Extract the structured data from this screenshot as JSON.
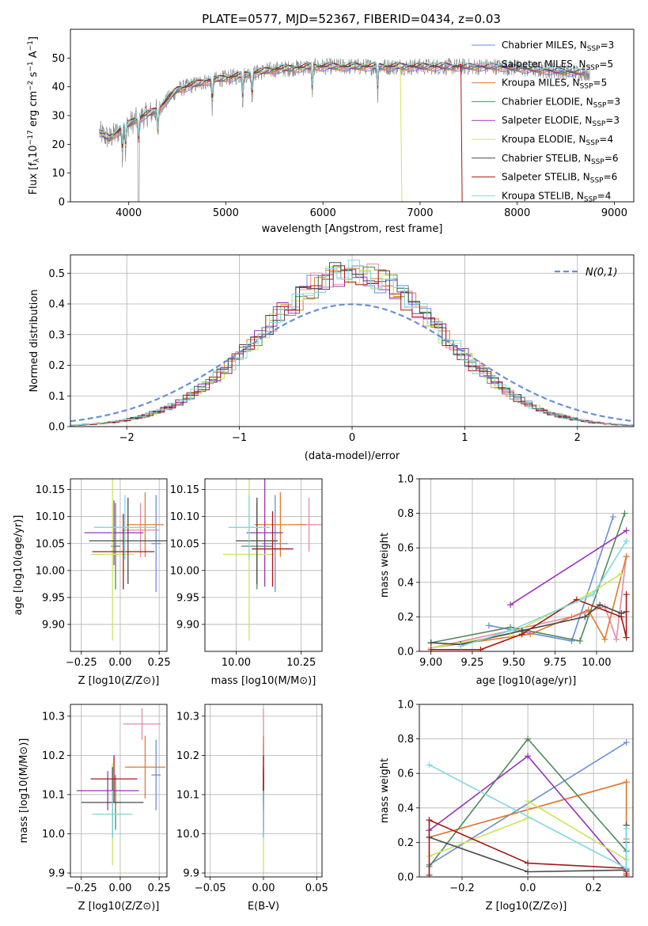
{
  "figure_title": "PLATE=0577, MJD=52367, FIBERID=0434, z=0.03",
  "colors": {
    "Chabrier MILES": "#6a8fd6",
    "Salpeter MILES": "#e48aa5",
    "Kroupa MILES": "#e07a2e",
    "Chabrier ELODIE": "#4f8a5a",
    "Salpeter ELODIE": "#9a32b8",
    "Kroupa ELODIE": "#c9e65c",
    "Chabrier STELIB": "#4a4a4a",
    "Salpeter STELIB": "#a81818",
    "Kroupa STELIB": "#7fd8e0"
  },
  "chart_data": [
    {
      "id": "spectrum",
      "type": "line",
      "title": "PLATE=0577, MJD=52367, FIBERID=0434, z=0.03",
      "xlabel": "wavelength [Angstrom, rest frame]",
      "ylabel": "Flux [f_λ 10^-17 erg cm^-2 s^-1 A^-1]",
      "xlim": [
        3400,
        9200
      ],
      "ylim": [
        0,
        60
      ],
      "xticks": [
        "4000",
        "5000",
        "6000",
        "7000",
        "8000",
        "9000"
      ],
      "yticks": [
        "0",
        "10",
        "20",
        "30",
        "40",
        "50"
      ],
      "legend_position": "top-right",
      "observed_spectrum_color": "#808080",
      "continuum_anchor_points": [
        [
          3700,
          24
        ],
        [
          3800,
          22
        ],
        [
          3950,
          26
        ],
        [
          4100,
          29
        ],
        [
          4300,
          32
        ],
        [
          4500,
          39
        ],
        [
          4800,
          42
        ],
        [
          5000,
          43
        ],
        [
          5500,
          46
        ],
        [
          5900,
          47
        ],
        [
          6300,
          47
        ],
        [
          6800,
          47
        ],
        [
          7200,
          47
        ],
        [
          7500,
          47
        ],
        [
          7800,
          47
        ],
        [
          8200,
          46
        ],
        [
          8600,
          45
        ],
        [
          8900,
          45
        ]
      ],
      "model_end_wavelengths": {
        "Salpeter STELIB": 7420,
        "Kroupa ELODIE": 6800
      },
      "series": [
        {
          "name": "Chabrier MILES",
          "nssp": "3"
        },
        {
          "name": "Salpeter MILES",
          "nssp": "5"
        },
        {
          "name": "Kroupa MILES",
          "nssp": "5"
        },
        {
          "name": "Chabrier ELODIE",
          "nssp": "3"
        },
        {
          "name": "Salpeter ELODIE",
          "nssp": "3"
        },
        {
          "name": "Kroupa ELODIE",
          "nssp": "4"
        },
        {
          "name": "Chabrier STELIB",
          "nssp": "6"
        },
        {
          "name": "Salpeter STELIB",
          "nssp": "6"
        },
        {
          "name": "Kroupa STELIB",
          "nssp": "4"
        }
      ]
    },
    {
      "id": "residuals",
      "type": "line",
      "xlabel": "(data-model)/error",
      "ylabel": "Normed distribution",
      "xlim": [
        -2.5,
        2.5
      ],
      "ylim": [
        0,
        0.56
      ],
      "xticks": [
        "−2",
        "−1",
        "0",
        "1",
        "2"
      ],
      "yticks": [
        "0.0",
        "0.1",
        "0.2",
        "0.3",
        "0.4",
        "0.5"
      ],
      "grid": true,
      "legend_position": "top-right",
      "legend_label": "N(0,1)",
      "reference_curve": {
        "name": "N(0,1)",
        "mean": 0,
        "sigma": 1,
        "style": "dashed"
      },
      "bin_width": 0.1,
      "histogram_envelope_peak": 0.5,
      "histogram_envelope_sigma": 0.8
    },
    {
      "id": "age_vs_Z",
      "type": "scatter",
      "xlabel": "Z [log10(Z/Z⊙)]",
      "ylabel": "age [log10(age/yr)]",
      "xlim": [
        -0.32,
        0.3
      ],
      "ylim": [
        9.85,
        10.17
      ],
      "xticks": [
        -0.25,
        0.0,
        0.25
      ],
      "yticks": [
        9.9,
        9.95,
        10.0,
        10.05,
        10.1,
        10.15
      ],
      "grid": true,
      "points": [
        {
          "series": "Chabrier MILES",
          "x": 0.23,
          "y": 10.05,
          "xerr": 0.03,
          "yerr": 0.09
        },
        {
          "series": "Salpeter MILES",
          "x": 0.13,
          "y": 10.075,
          "xerr": 0.12,
          "yerr": 0.05
        },
        {
          "series": "Kroupa MILES",
          "x": 0.16,
          "y": 10.085,
          "xerr": 0.12,
          "yerr": 0.06
        },
        {
          "series": "Chabrier ELODIE",
          "x": -0.03,
          "y": 10.045,
          "xerr": 0.03,
          "yerr": 0.08
        },
        {
          "series": "Salpeter ELODIE",
          "x": -0.04,
          "y": 10.07,
          "xerr": 0.19,
          "yerr": 0.06
        },
        {
          "series": "Kroupa ELODIE",
          "x": -0.05,
          "y": 10.03,
          "xerr": 0.14,
          "yerr": 0.16
        },
        {
          "series": "Chabrier STELIB",
          "x": 0.05,
          "y": 10.055,
          "xerr": 0.25,
          "yerr": 0.08
        },
        {
          "series": "Salpeter STELIB",
          "x": 0.02,
          "y": 10.035,
          "xerr": 0.2,
          "yerr": 0.07
        },
        {
          "series": "Kroupa STELIB",
          "x": 0.03,
          "y": 10.08,
          "xerr": 0.2,
          "yerr": 0.06
        }
      ]
    },
    {
      "id": "age_vs_mass",
      "type": "scatter",
      "xlabel": "mass [log10(M/M⊙)]",
      "ylabel": "",
      "xlim": [
        9.88,
        10.33
      ],
      "ylim": [
        9.85,
        10.17
      ],
      "xticks": [
        10.0,
        10.25
      ],
      "yticks": [
        9.9,
        9.95,
        10.0,
        10.05,
        10.1,
        10.15
      ],
      "grid": true,
      "points": [
        {
          "series": "Chabrier MILES",
          "x": 10.15,
          "y": 10.05,
          "xerr": 0.05,
          "yerr": 0.09
        },
        {
          "series": "Salpeter MILES",
          "x": 10.28,
          "y": 10.085,
          "xerr": 0.05,
          "yerr": 0.05
        },
        {
          "series": "Kroupa MILES",
          "x": 10.17,
          "y": 10.085,
          "xerr": 0.1,
          "yerr": 0.06
        },
        {
          "series": "Chabrier ELODIE",
          "x": 10.08,
          "y": 10.045,
          "xerr": 0.06,
          "yerr": 0.08
        },
        {
          "series": "Salpeter ELODIE",
          "x": 10.11,
          "y": 10.07,
          "xerr": 0.07,
          "yerr": 0.1
        },
        {
          "series": "Kroupa ELODIE",
          "x": 10.05,
          "y": 10.03,
          "xerr": 0.1,
          "yerr": 0.16
        },
        {
          "series": "Chabrier STELIB",
          "x": 10.08,
          "y": 10.055,
          "xerr": 0.08,
          "yerr": 0.08
        },
        {
          "series": "Salpeter STELIB",
          "x": 10.14,
          "y": 10.04,
          "xerr": 0.08,
          "yerr": 0.07
        },
        {
          "series": "Kroupa STELIB",
          "x": 10.05,
          "y": 10.08,
          "xerr": 0.08,
          "yerr": 0.06
        }
      ]
    },
    {
      "id": "weight_vs_age",
      "type": "line",
      "xlabel": "age [log10(age/yr)]",
      "ylabel": "mass weight",
      "xlim": [
        8.93,
        10.22
      ],
      "ylim": [
        0,
        1.0
      ],
      "xticks": [
        9.0,
        9.25,
        9.5,
        9.75,
        10.0
      ],
      "yticks": [
        0.0,
        0.2,
        0.4,
        0.6,
        0.8,
        1.0
      ],
      "grid": true,
      "series": [
        {
          "name": "Chabrier MILES",
          "x": [
            9.35,
            9.85,
            10.1
          ],
          "y": [
            0.15,
            0.06,
            0.78
          ]
        },
        {
          "name": "Salpeter MILES",
          "x": [
            9.0,
            9.48,
            9.85,
            10.05,
            10.12,
            10.18
          ],
          "y": [
            0.02,
            0.12,
            0.2,
            0.26,
            0.07,
            0.55
          ]
        },
        {
          "name": "Kroupa MILES",
          "x": [
            9.0,
            9.6,
            9.95,
            10.05,
            10.18
          ],
          "y": [
            0.02,
            0.1,
            0.24,
            0.07,
            0.55
          ]
        },
        {
          "name": "Chabrier ELODIE",
          "x": [
            9.0,
            9.48,
            9.9,
            10.17
          ],
          "y": [
            0.05,
            0.14,
            0.06,
            0.8
          ]
        },
        {
          "name": "Salpeter ELODIE",
          "x": [
            9.48,
            10.18
          ],
          "y": [
            0.27,
            0.7
          ]
        },
        {
          "name": "Kroupa ELODIE",
          "x": [
            9.0,
            9.48,
            9.95,
            10.15
          ],
          "y": [
            0.02,
            0.1,
            0.33,
            0.45
          ]
        },
        {
          "name": "Chabrier STELIB",
          "x": [
            9.0,
            9.18,
            9.55,
            9.93,
            10.02,
            10.15,
            10.18
          ],
          "y": [
            0.05,
            0.04,
            0.12,
            0.2,
            0.27,
            0.22,
            0.23
          ]
        },
        {
          "name": "Salpeter STELIB",
          "x": [
            9.0,
            9.3,
            9.55,
            9.88,
            10.15,
            10.18,
            10.18
          ],
          "y": [
            0.01,
            0.01,
            0.1,
            0.3,
            0.2,
            0.08,
            0.33
          ]
        },
        {
          "name": "Kroupa STELIB",
          "x": [
            9.18,
            9.48,
            9.98,
            10.18
          ],
          "y": [
            0.03,
            0.12,
            0.33,
            0.64
          ]
        }
      ]
    },
    {
      "id": "mass_vs_Z",
      "type": "scatter",
      "xlabel": "Z [log10(Z/Z⊙)]",
      "ylabel": "mass [log10(M/M⊙)]",
      "xlim": [
        -0.32,
        0.3
      ],
      "ylim": [
        9.89,
        10.33
      ],
      "xticks": [
        -0.25,
        0.0,
        0.25
      ],
      "yticks": [
        9.9,
        10.0,
        10.1,
        10.2,
        10.3
      ],
      "grid": true,
      "points": [
        {
          "series": "Chabrier MILES",
          "x": 0.23,
          "y": 10.15,
          "xerr": 0.03,
          "yerr": 0.09
        },
        {
          "series": "Salpeter MILES",
          "x": 0.14,
          "y": 10.28,
          "xerr": 0.12,
          "yerr": 0.04
        },
        {
          "series": "Kroupa MILES",
          "x": 0.16,
          "y": 10.17,
          "xerr": 0.13,
          "yerr": 0.08
        },
        {
          "series": "Chabrier ELODIE",
          "x": -0.03,
          "y": 10.08,
          "xerr": 0.04,
          "yerr": 0.07
        },
        {
          "series": "Salpeter ELODIE",
          "x": -0.08,
          "y": 10.11,
          "xerr": 0.2,
          "yerr": 0.05
        },
        {
          "series": "Kroupa ELODIE",
          "x": -0.05,
          "y": 10.05,
          "xerr": 0.1,
          "yerr": 0.13
        },
        {
          "series": "Chabrier STELIB",
          "x": -0.05,
          "y": 10.08,
          "xerr": 0.2,
          "yerr": 0.09
        },
        {
          "series": "Salpeter STELIB",
          "x": -0.04,
          "y": 10.14,
          "xerr": 0.15,
          "yerr": 0.06
        },
        {
          "series": "Kroupa STELIB",
          "x": -0.05,
          "y": 10.05,
          "xerr": 0.13,
          "yerr": 0.06
        }
      ]
    },
    {
      "id": "mass_vs_ebv",
      "type": "scatter",
      "xlabel": "E(B-V)",
      "ylabel": "",
      "xlim": [
        -0.055,
        0.055
      ],
      "ylim": [
        9.89,
        10.33
      ],
      "xticks": [
        -0.05,
        0.0,
        0.05
      ],
      "yticks": [
        9.9,
        10.0,
        10.1,
        10.2,
        10.3
      ],
      "grid": true,
      "points": [
        {
          "series": "Chabrier MILES",
          "x": 0.0,
          "y": 10.15,
          "xerr": 0.0,
          "yerr": 0.09
        },
        {
          "series": "Salpeter MILES",
          "x": 0.0,
          "y": 10.28,
          "xerr": 0.0,
          "yerr": 0.04
        },
        {
          "series": "Kroupa MILES",
          "x": 0.0,
          "y": 10.17,
          "xerr": 0.0,
          "yerr": 0.08
        },
        {
          "series": "Chabrier ELODIE",
          "x": 0.0,
          "y": 10.08,
          "xerr": 0.0,
          "yerr": 0.07
        },
        {
          "series": "Salpeter ELODIE",
          "x": 0.0,
          "y": 10.11,
          "xerr": 0.0,
          "yerr": 0.05
        },
        {
          "series": "Kroupa ELODIE",
          "x": 0.0,
          "y": 10.0,
          "xerr": 0.0,
          "yerr": 0.09
        },
        {
          "series": "Chabrier STELIB",
          "x": 0.0,
          "y": 10.08,
          "xerr": 0.0,
          "yerr": 0.09
        },
        {
          "series": "Salpeter STELIB",
          "x": 0.0,
          "y": 10.14,
          "xerr": 0.0,
          "yerr": 0.06
        },
        {
          "series": "Kroupa STELIB",
          "x": 0.0,
          "y": 10.05,
          "xerr": 0.0,
          "yerr": 0.06
        }
      ]
    },
    {
      "id": "weight_vs_Z",
      "type": "line",
      "xlabel": "Z [log10(Z/Z⊙)]",
      "ylabel": "mass weight",
      "xlim": [
        -0.33,
        0.32
      ],
      "ylim": [
        0,
        1.0
      ],
      "xticks": [
        -0.2,
        0.0,
        0.2
      ],
      "yticks": [
        0.0,
        0.2,
        0.4,
        0.6,
        0.8,
        1.0
      ],
      "grid": true,
      "series": [
        {
          "name": "Chabrier MILES",
          "x": [
            -0.3,
            0.3
          ],
          "y": [
            0.07,
            0.78
          ]
        },
        {
          "name": "Salpeter MILES",
          "x": [
            -0.3,
            0.3,
            0.3,
            0.3
          ],
          "y": [
            0.23,
            0.55,
            0.03,
            0.1
          ]
        },
        {
          "name": "Kroupa MILES",
          "x": [
            -0.3,
            0.3,
            0.3,
            0.3
          ],
          "y": [
            0.23,
            0.55,
            0.02,
            0.22
          ]
        },
        {
          "name": "Chabrier ELODIE",
          "x": [
            -0.3,
            0.0,
            0.3
          ],
          "y": [
            0.06,
            0.8,
            0.15
          ]
        },
        {
          "name": "Salpeter ELODIE",
          "x": [
            -0.3,
            0.0,
            0.3
          ],
          "y": [
            0.27,
            0.7,
            0.03
          ]
        },
        {
          "name": "Kroupa ELODIE",
          "x": [
            -0.3,
            0.0,
            0.0,
            0.3
          ],
          "y": [
            0.12,
            0.34,
            0.44,
            0.1
          ]
        },
        {
          "name": "Chabrier STELIB",
          "x": [
            -0.3,
            0.0,
            0.3,
            0.3,
            0.3
          ],
          "y": [
            0.23,
            0.03,
            0.04,
            0.3,
            0.2
          ]
        },
        {
          "name": "Salpeter STELIB",
          "x": [
            -0.3,
            -0.3,
            0.0,
            0.3,
            0.3
          ],
          "y": [
            0.01,
            0.33,
            0.08,
            0.05,
            0.01
          ]
        },
        {
          "name": "Kroupa STELIB",
          "x": [
            -0.3,
            0.3,
            0.3
          ],
          "y": [
            0.65,
            0.05,
            0.28
          ]
        }
      ]
    }
  ]
}
